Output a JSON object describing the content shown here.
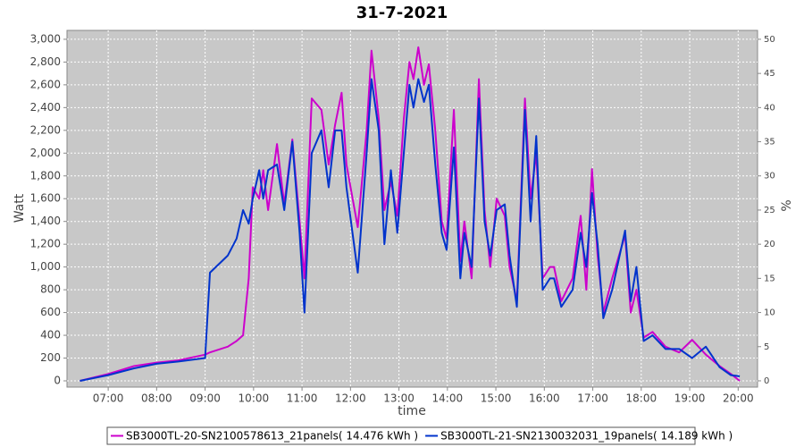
{
  "chart_data": {
    "type": "line",
    "title": "31-7-2021",
    "xlabel": "time",
    "ylabel": "Watt",
    "y2label": "%",
    "x": [
      "06:25",
      "07:00",
      "07:32",
      "08:00",
      "08:27",
      "09:00",
      "09:06",
      "09:28",
      "09:39",
      "09:47",
      "09:54",
      "09:59",
      "10:07",
      "10:12",
      "10:18",
      "10:29",
      "10:38",
      "10:48",
      "10:57",
      "11:03",
      "11:12",
      "11:24",
      "11:33",
      "11:41",
      "11:49",
      "11:55",
      "12:09",
      "12:20",
      "12:26",
      "12:35",
      "12:42",
      "12:50",
      "12:58",
      "13:06",
      "13:13",
      "13:18",
      "13:24",
      "13:31",
      "13:37",
      "13:45",
      "13:53",
      "13:59",
      "14:08",
      "14:16",
      "14:21",
      "14:30",
      "14:39",
      "14:46",
      "14:53",
      "15:01",
      "15:11",
      "15:17",
      "15:26",
      "15:36",
      "15:43",
      "15:50",
      "15:58",
      "16:07",
      "16:12",
      "16:21",
      "16:35",
      "16:45",
      "16:52",
      "16:59",
      "17:06",
      "17:13",
      "17:24",
      "17:40",
      "17:47",
      "17:54",
      "18:03",
      "18:14",
      "18:30",
      "18:47",
      "19:03",
      "19:20",
      "19:37",
      "19:51",
      "20:02"
    ],
    "series": [
      {
        "name": "SB3000TL-20-SN2100578613_21panels( 14.476 kWh )",
        "color": "#cc00cc",
        "values": [
          0,
          60,
          130,
          160,
          180,
          230,
          250,
          300,
          350,
          400,
          900,
          1700,
          1600,
          1850,
          1500,
          2080,
          1550,
          2120,
          1400,
          900,
          2480,
          2380,
          1900,
          2250,
          2530,
          1900,
          1350,
          2200,
          2900,
          2300,
          1500,
          1750,
          1450,
          2300,
          2800,
          2650,
          2930,
          2600,
          2780,
          2200,
          1400,
          1250,
          2380,
          1050,
          1400,
          900,
          2650,
          1500,
          1000,
          1600,
          1450,
          1000,
          700,
          2480,
          1600,
          2000,
          900,
          1000,
          1000,
          700,
          900,
          1450,
          800,
          1860,
          1100,
          600,
          900,
          1280,
          600,
          800,
          380,
          430,
          300,
          250,
          360,
          230,
          130,
          60,
          0
        ]
      },
      {
        "name": "SB3000TL-21-SN2130032031_19panels( 14.189 kWh )",
        "color": "#0033cc",
        "values": [
          0,
          50,
          110,
          150,
          170,
          200,
          950,
          1100,
          1250,
          1500,
          1380,
          1600,
          1850,
          1600,
          1850,
          1900,
          1500,
          2100,
          1300,
          600,
          2000,
          2200,
          1700,
          2200,
          2200,
          1700,
          950,
          2000,
          2650,
          2200,
          1200,
          1850,
          1300,
          2000,
          2600,
          2400,
          2650,
          2450,
          2600,
          1900,
          1300,
          1150,
          2050,
          900,
          1300,
          1000,
          2480,
          1400,
          1100,
          1500,
          1550,
          1100,
          650,
          2380,
          1400,
          2150,
          800,
          900,
          900,
          650,
          800,
          1300,
          1000,
          1650,
          1200,
          550,
          800,
          1320,
          700,
          1000,
          350,
          400,
          280,
          280,
          200,
          300,
          120,
          50,
          40
        ]
      }
    ],
    "xlim": [
      "06:09",
      "20:24"
    ],
    "xticks": [
      "07:00",
      "08:00",
      "09:00",
      "10:00",
      "11:00",
      "12:00",
      "13:00",
      "14:00",
      "15:00",
      "16:00",
      "17:00",
      "18:00",
      "19:00",
      "20:00"
    ],
    "ylim": [
      -55,
      3078
    ],
    "yticks": [
      0,
      200,
      400,
      600,
      800,
      {
        "value": 1000,
        "label": "1,000"
      },
      {
        "value": 1200,
        "label": "1,200"
      },
      {
        "value": 1400,
        "label": "1,400"
      },
      {
        "value": 1600,
        "label": "1,600"
      },
      {
        "value": 1800,
        "label": "1,800"
      },
      {
        "value": 2000,
        "label": "2,000"
      },
      {
        "value": 2200,
        "label": "2,200"
      },
      {
        "value": 2400,
        "label": "2,400"
      },
      {
        "value": 2600,
        "label": "2,600"
      },
      {
        "value": 2800,
        "label": "2,800"
      },
      {
        "value": 3000,
        "label": "3,000"
      }
    ],
    "y2lim": [
      -0.92,
      51.3
    ],
    "y2ticks": [
      0,
      5,
      10,
      15,
      20,
      25,
      30,
      35,
      40,
      45,
      50
    ],
    "grid": true
  }
}
